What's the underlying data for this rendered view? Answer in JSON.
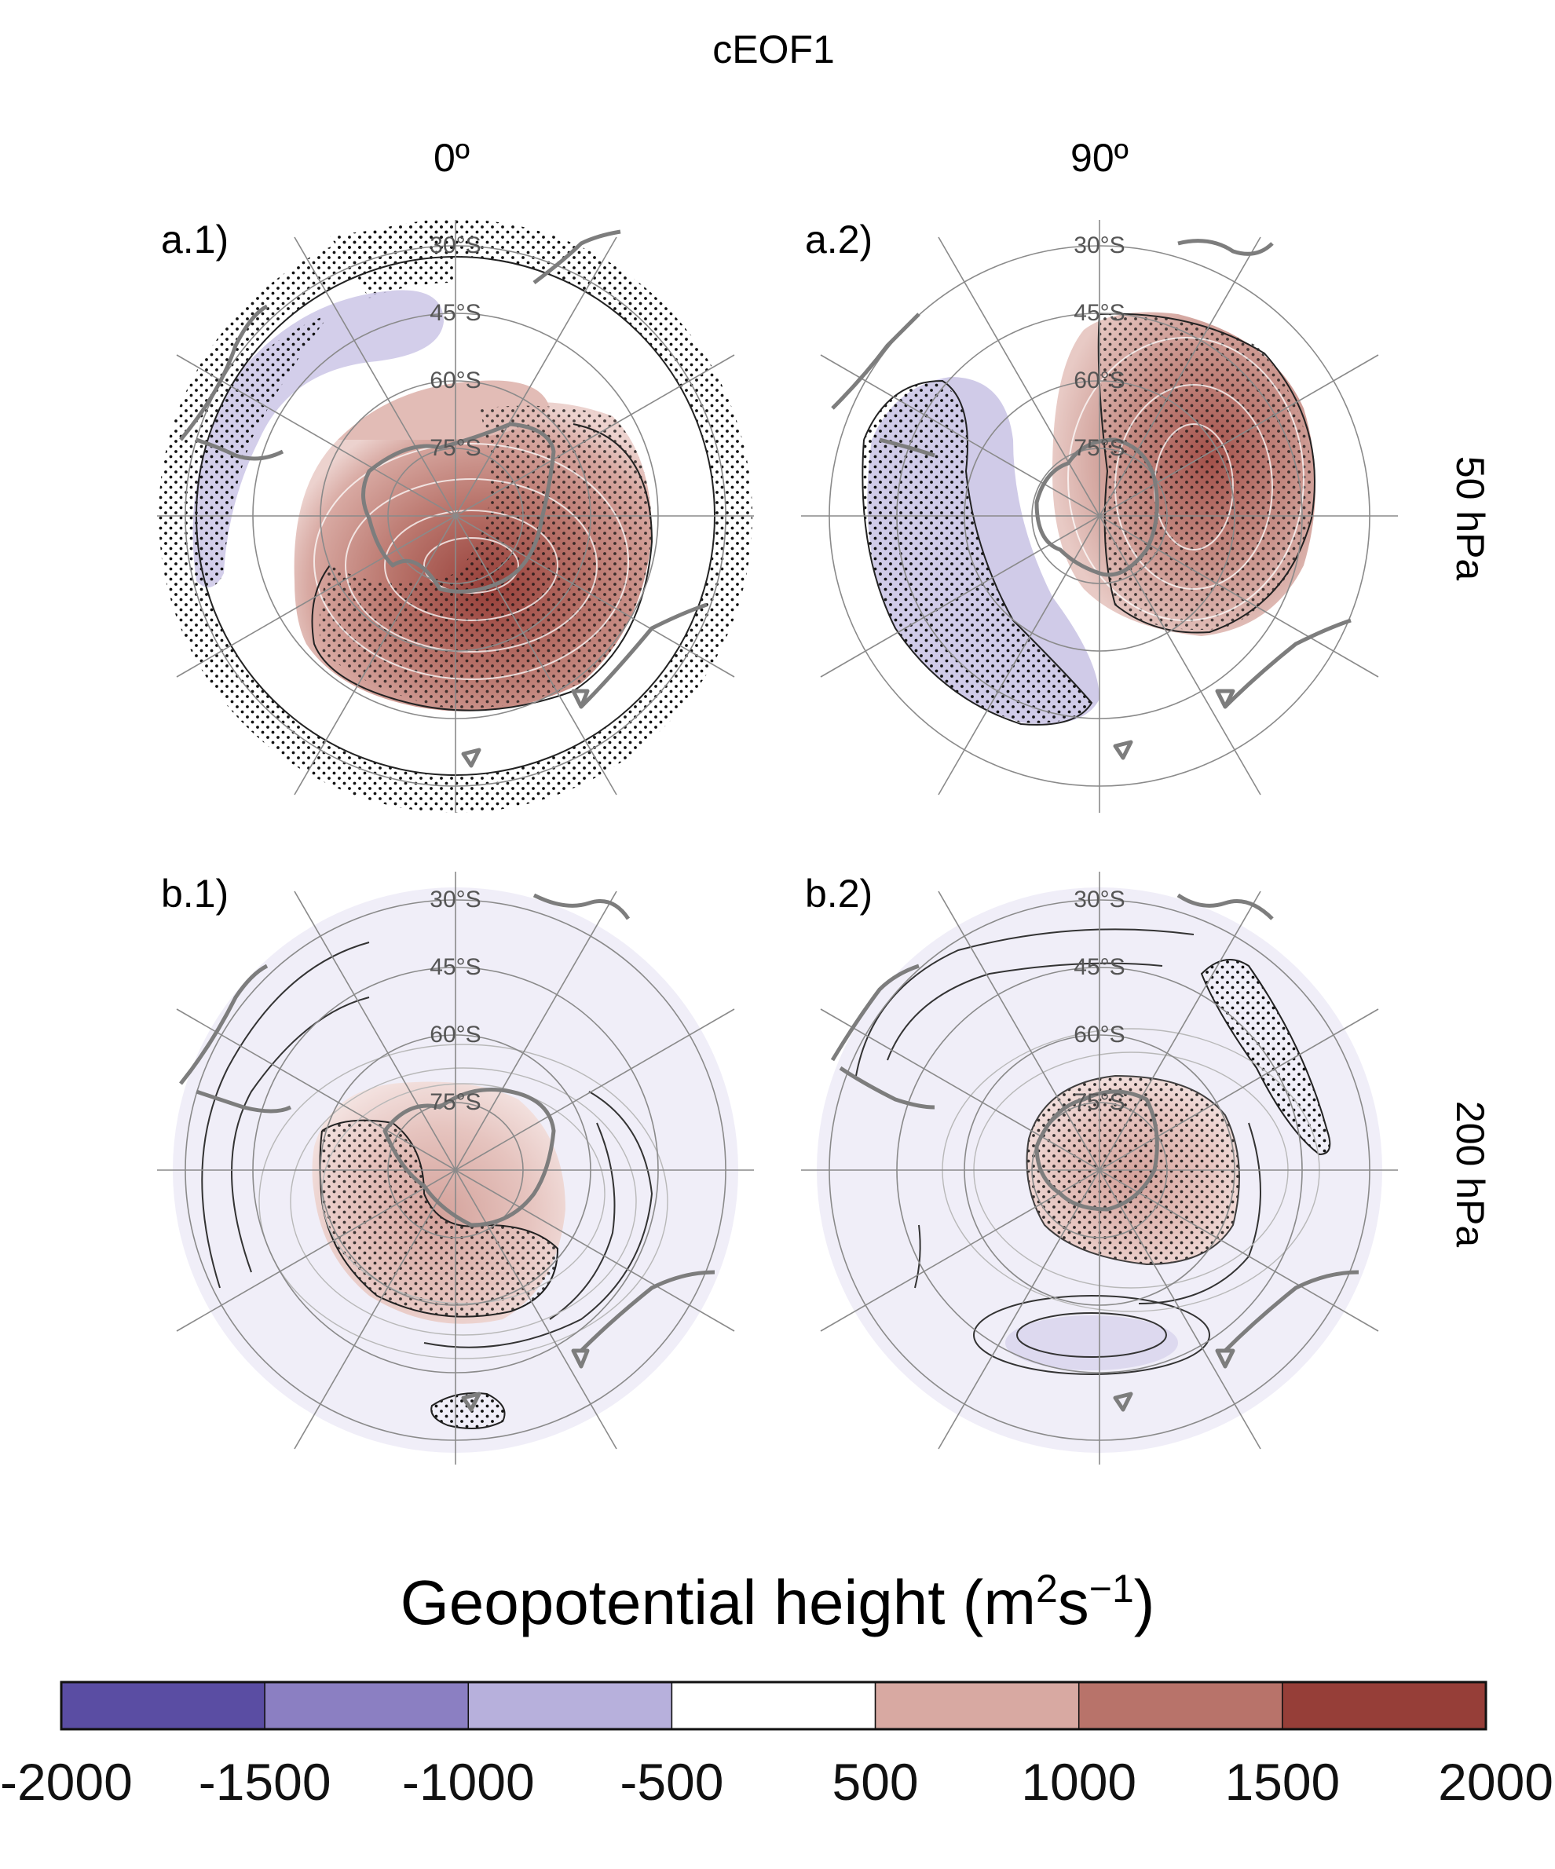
{
  "figure": {
    "title": "cEOF1",
    "column_headers": [
      "0º",
      "90º"
    ],
    "row_labels": [
      "50 hPa",
      "200 hPa"
    ]
  },
  "panels": [
    {
      "label": "a.1)",
      "latitude_labels": [
        "30°S",
        "45°S",
        "60°S",
        "75°S"
      ]
    },
    {
      "label": "a.2)",
      "latitude_labels": [
        "30°S",
        "45°S",
        "60°S",
        "75°S"
      ]
    },
    {
      "label": "b.1)",
      "latitude_labels": [
        "30°S",
        "45°S",
        "60°S",
        "75°S"
      ]
    },
    {
      "label": "b.2)",
      "latitude_labels": [
        "30°S",
        "45°S",
        "60°S",
        "75°S"
      ]
    }
  ],
  "colorbar": {
    "title_main": "Geopotential height (m",
    "title_sup1": "2",
    "title_mid": "s",
    "title_sup2": "−1",
    "title_end": ")",
    "tick_labels": [
      "-2000",
      "-1500",
      "-1000",
      "-500",
      "500",
      "1000",
      "1500",
      "2000"
    ],
    "colors": [
      "#5a4da3",
      "#8b7fc2",
      "#b7b0dc",
      "#ffffff",
      "#d8a9a2",
      "#b8736a",
      "#963e38"
    ]
  },
  "chart_data": {
    "type": "heatmap",
    "title": "cEOF1",
    "columns": [
      "0º",
      "90º"
    ],
    "rows": [
      "50 hPa",
      "200 hPa"
    ],
    "variable": "Geopotential height (m2s-1)",
    "levels": [
      -2000,
      -1500,
      -1000,
      -500,
      500,
      1000,
      1500,
      2000
    ],
    "panels": [
      {
        "label": "a.1)",
        "phase": "0º",
        "level": "50 hPa",
        "max_positive": 2000,
        "min_negative": -1000,
        "positive_center": "75°S",
        "negative_band": "45°S"
      },
      {
        "label": "a.2)",
        "phase": "90º",
        "level": "50 hPa",
        "max_positive": 1800,
        "min_negative": -1000,
        "positive_center": "75°S",
        "negative_band": "45°S"
      },
      {
        "label": "b.1)",
        "phase": "0º",
        "level": "200 hPa",
        "max_positive": 1000,
        "min_negative": -500,
        "positive_center": "75°S",
        "negative_band": "45°S"
      },
      {
        "label": "b.2)",
        "phase": "90º",
        "level": "200 hPa",
        "max_positive": 900,
        "min_negative": -500,
        "positive_center": "75°S",
        "negative_band": "45°S"
      }
    ]
  }
}
